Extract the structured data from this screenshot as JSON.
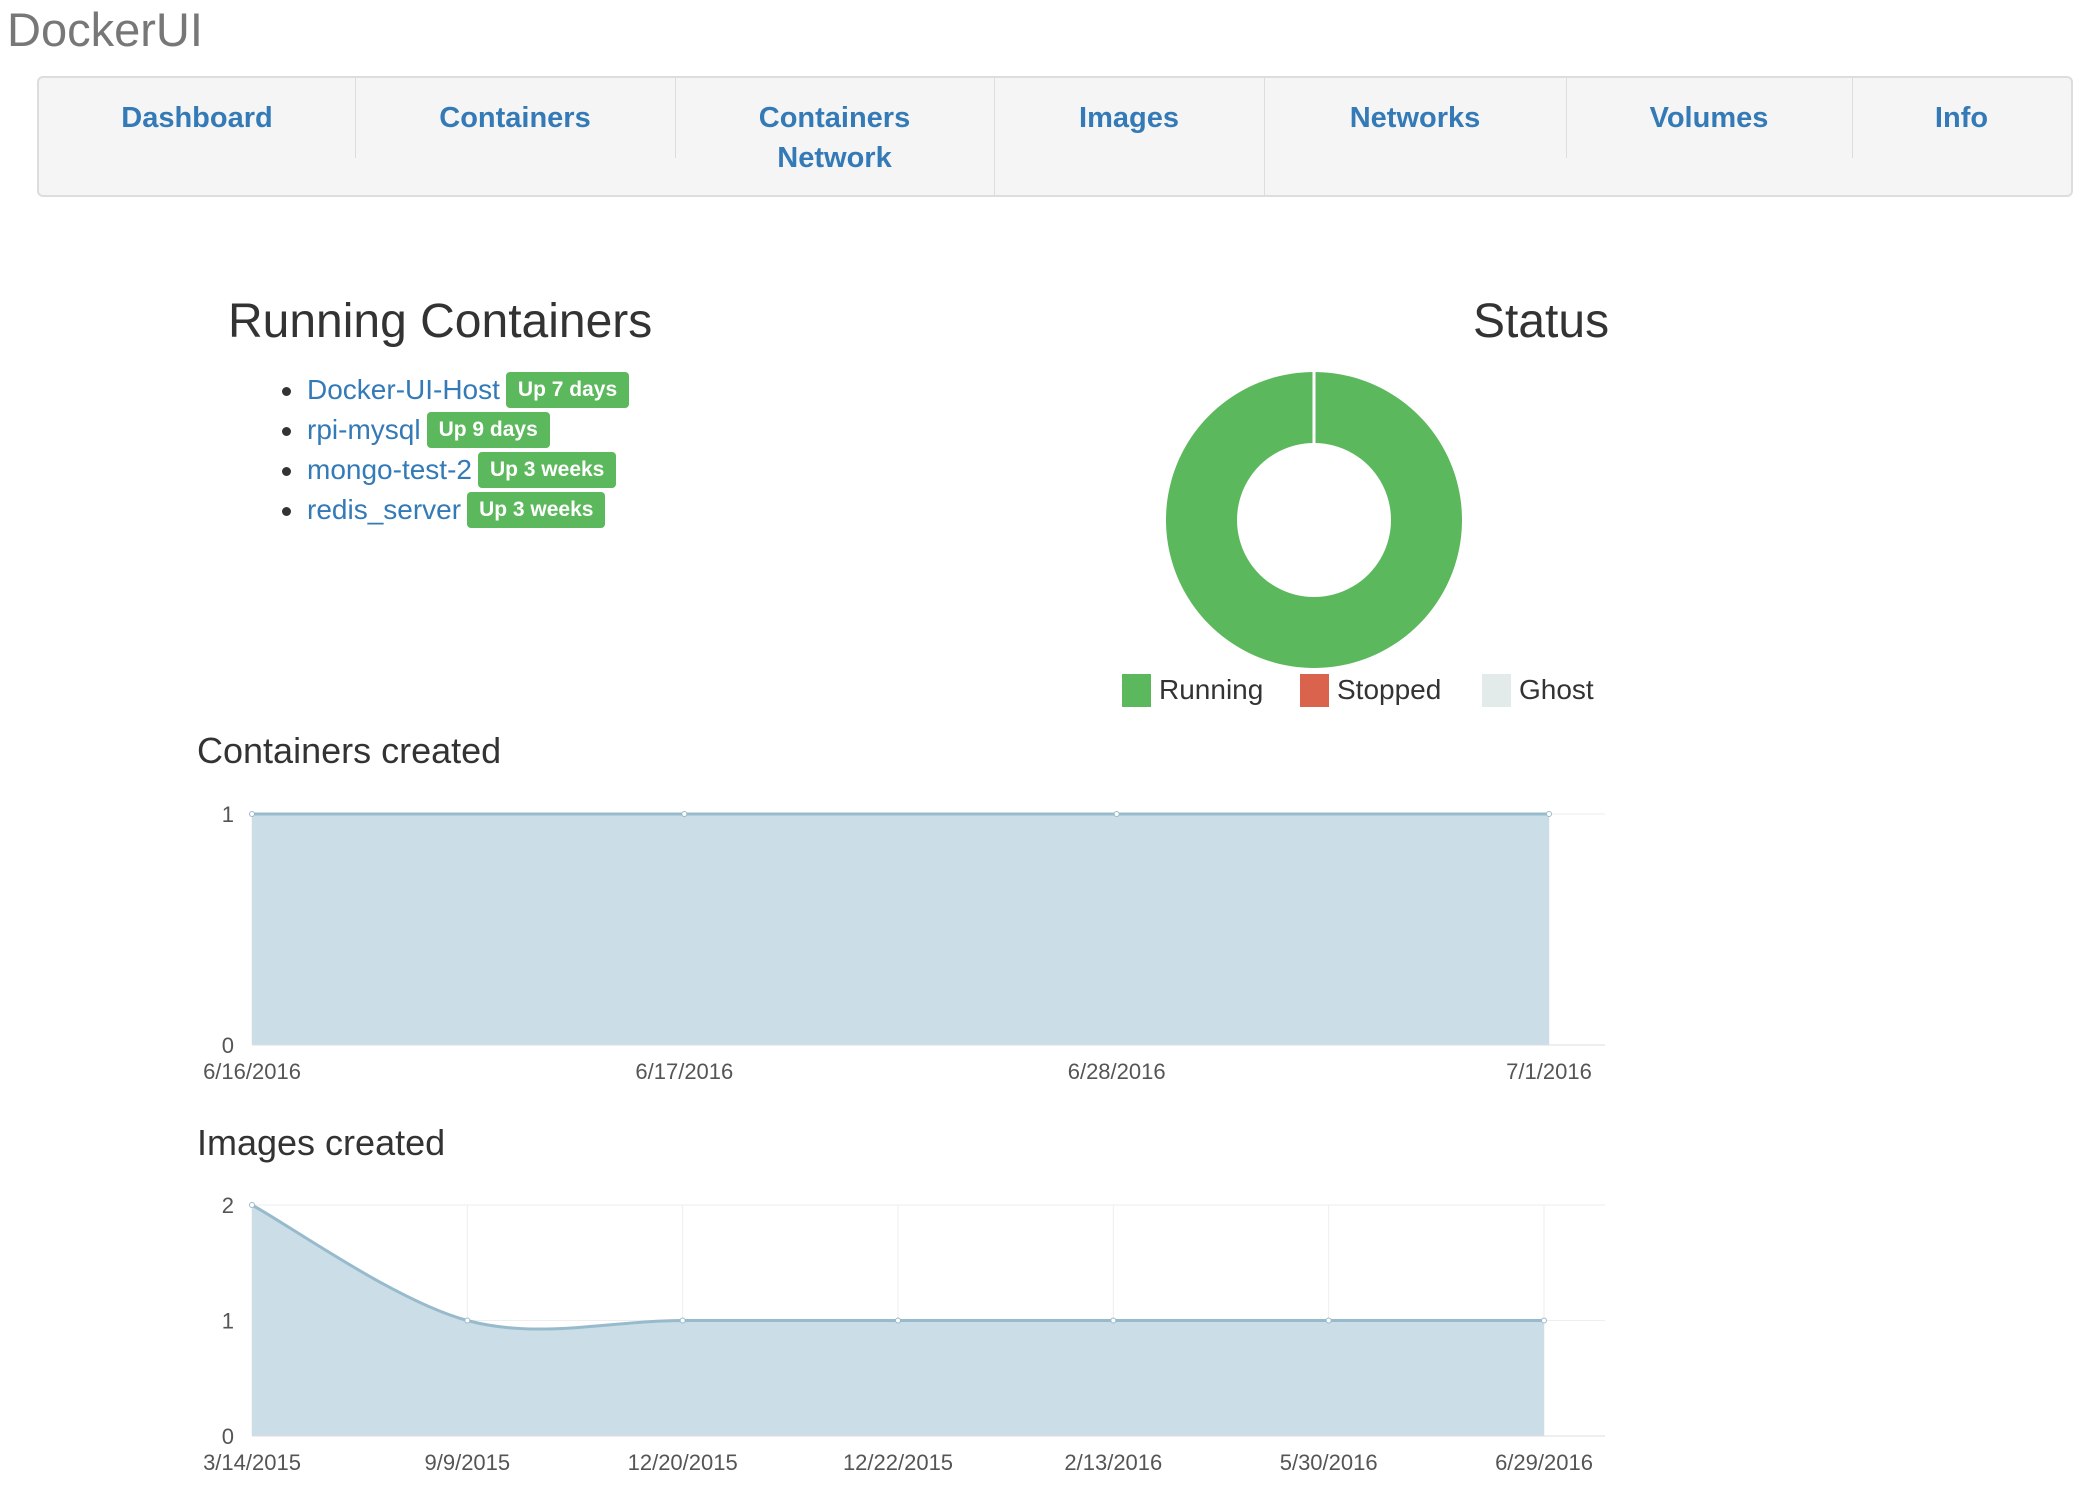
{
  "brand": "DockerUI",
  "nav": [
    {
      "label": "Dashboard",
      "label2": ""
    },
    {
      "label": "Containers",
      "label2": ""
    },
    {
      "label": "Containers",
      "label2": "Network"
    },
    {
      "label": "Images",
      "label2": ""
    },
    {
      "label": "Networks",
      "label2": ""
    },
    {
      "label": "Volumes",
      "label2": ""
    },
    {
      "label": "Info",
      "label2": ""
    }
  ],
  "running": {
    "title": "Running Containers",
    "items": [
      {
        "name": "Docker-UI-Host",
        "status": "Up 7 days"
      },
      {
        "name": "rpi-mysql",
        "status": "Up 9 days"
      },
      {
        "name": "mongo-test-2",
        "status": "Up 3 weeks"
      },
      {
        "name": "redis_server",
        "status": "Up 3 weeks"
      }
    ]
  },
  "status": {
    "title": "Status",
    "legend": [
      {
        "label": "Running",
        "color": "#5cb85c"
      },
      {
        "label": "Stopped",
        "color": "#d9634c"
      },
      {
        "label": "Ghost",
        "color": "#e2eaea"
      }
    ]
  },
  "colors": {
    "link": "#337ab7",
    "success": "#5cb85c",
    "area_fill": "#cbdde6",
    "area_line": "#97bbcd"
  },
  "chart_data": [
    {
      "type": "pie",
      "title": "Status",
      "categories": [
        "Running",
        "Stopped",
        "Ghost"
      ],
      "values": [
        4,
        0,
        0
      ],
      "donut": true
    },
    {
      "type": "area",
      "title": "Containers created",
      "x": [
        "6/16/2016",
        "6/17/2016",
        "6/28/2016",
        "7/1/2016"
      ],
      "values": [
        1,
        1,
        1,
        1
      ],
      "ylim": [
        0,
        1
      ],
      "yticks": [
        0,
        1
      ],
      "grid": true
    },
    {
      "type": "area",
      "title": "Images created",
      "x": [
        "3/14/2015",
        "9/9/2015",
        "12/20/2015",
        "12/22/2015",
        "2/13/2016",
        "5/30/2016",
        "6/29/2016"
      ],
      "values": [
        2,
        1,
        1,
        1,
        1,
        1,
        1
      ],
      "ylim": [
        0,
        2
      ],
      "yticks": [
        0,
        1,
        2
      ],
      "grid": true
    }
  ]
}
